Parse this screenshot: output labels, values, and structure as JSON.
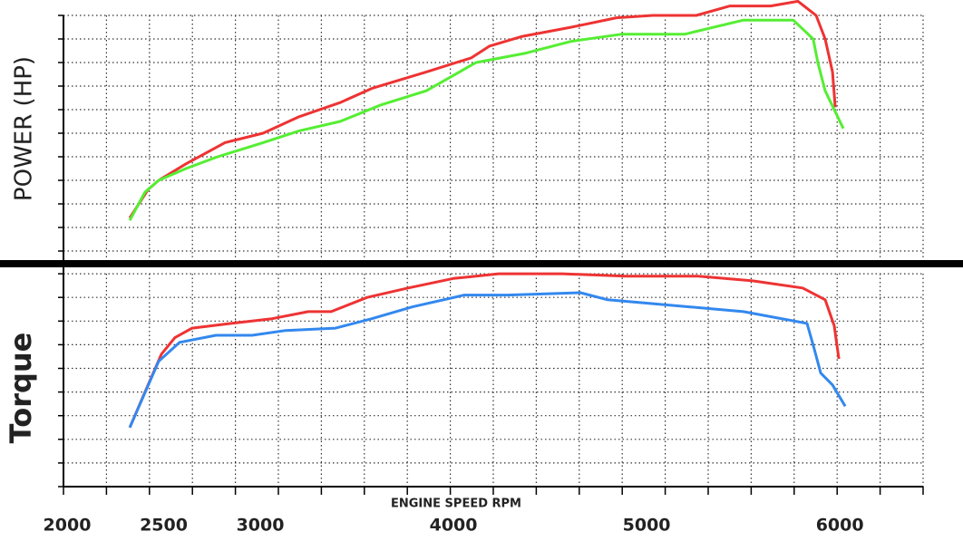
{
  "chart_data": [
    {
      "type": "line",
      "y_label": "POWER (HP)",
      "xlim": [
        2000,
        6450
      ],
      "ylim": [
        0,
        10.6
      ],
      "yticks": [
        0,
        1,
        2,
        3,
        4,
        5,
        6,
        7,
        8,
        9,
        10
      ],
      "series": [
        {
          "color": "#ee3333",
          "x": [
            2343,
            2437,
            2493,
            2634,
            2836,
            3033,
            3220,
            3432,
            3596,
            3878,
            4112,
            4206,
            4370,
            4629,
            4863,
            5051,
            5276,
            5450,
            5661,
            5802,
            5896,
            5943,
            5981,
            5995
          ],
          "values": [
            1.4,
            2.6,
            3.0,
            3.7,
            4.6,
            5.0,
            5.7,
            6.3,
            6.9,
            7.6,
            8.2,
            8.7,
            9.1,
            9.5,
            9.9,
            10.0,
            10.0,
            10.4,
            10.4,
            10.6,
            10.0,
            9.0,
            7.6,
            6.1
          ]
        },
        {
          "color": "#55ee33",
          "x": [
            2343,
            2422,
            2493,
            2634,
            2798,
            3033,
            3220,
            3432,
            3643,
            3878,
            4136,
            4394,
            4629,
            4887,
            5215,
            5520,
            5778,
            5881,
            5905,
            5943,
            5990,
            6037
          ],
          "values": [
            1.3,
            2.5,
            3.0,
            3.5,
            4.0,
            4.6,
            5.1,
            5.5,
            6.2,
            6.8,
            8.0,
            8.4,
            8.9,
            9.2,
            9.2,
            9.8,
            9.8,
            9.0,
            8.0,
            6.8,
            6.0,
            5.2
          ]
        }
      ]
    },
    {
      "type": "line",
      "y_label": "Torque",
      "x_label": "ENGINE SPEED RPM",
      "xlim": [
        2000,
        6450
      ],
      "xticks": [
        2000,
        2500,
        3000,
        4000,
        5000,
        6000
      ],
      "ylim": [
        0,
        9.2
      ],
      "yticks": [
        0,
        1,
        2,
        3,
        4,
        5,
        6,
        7,
        8,
        9
      ],
      "series": [
        {
          "color": "#ee3333",
          "x": [
            2343,
            2422,
            2507,
            2577,
            2666,
            2868,
            3079,
            3267,
            3385,
            3572,
            3784,
            4018,
            4253,
            4582,
            4910,
            5286,
            5567,
            5826,
            5943,
            5990,
            6014
          ],
          "values": [
            2.5,
            4.0,
            5.6,
            6.3,
            6.7,
            6.9,
            7.1,
            7.4,
            7.4,
            8.0,
            8.4,
            8.8,
            9.0,
            9.0,
            8.9,
            8.9,
            8.7,
            8.4,
            7.9,
            6.8,
            5.4
          ]
        },
        {
          "color": "#3388ee",
          "x": [
            2343,
            2493,
            2601,
            2789,
            2977,
            3150,
            3408,
            3596,
            3807,
            4075,
            4300,
            4676,
            4817,
            5239,
            5520,
            5849,
            5887,
            5920,
            5981,
            6047
          ],
          "values": [
            2.5,
            5.3,
            6.1,
            6.4,
            6.4,
            6.6,
            6.7,
            7.1,
            7.6,
            8.1,
            8.1,
            8.2,
            7.9,
            7.6,
            7.4,
            6.9,
            5.8,
            4.8,
            4.3,
            3.4
          ]
        }
      ]
    }
  ]
}
